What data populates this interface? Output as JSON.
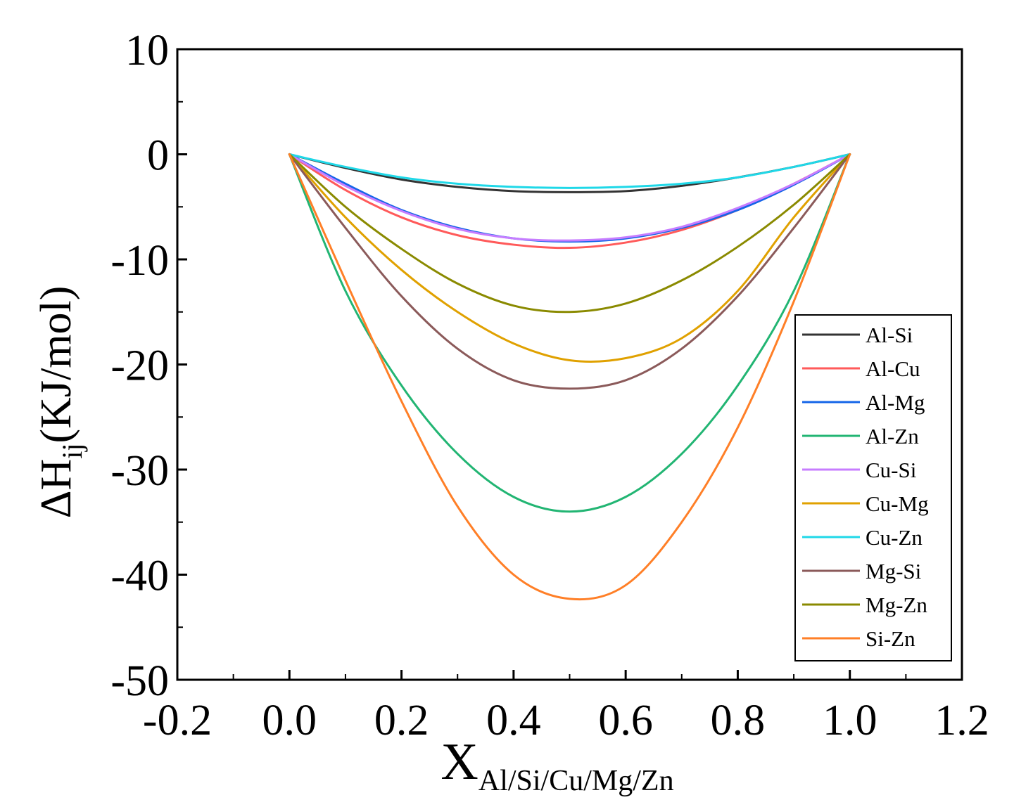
{
  "chart_data": {
    "type": "line",
    "title": "",
    "xlabel": {
      "main": "X",
      "subscript": "Al/Si/Cu/Mg/Zn"
    },
    "ylabel": {
      "prefix": "ΔH",
      "subscript": "ij",
      "suffix": "(KJ/mol)"
    },
    "xlim": [
      -0.2,
      1.2
    ],
    "ylim": [
      -50,
      10
    ],
    "xticks": [
      -0.2,
      0.0,
      0.2,
      0.4,
      0.6,
      0.8,
      1.0,
      1.2
    ],
    "xtick_labels": [
      "-0.2",
      "0.0",
      "0.2",
      "0.4",
      "0.6",
      "0.8",
      "1.0",
      "1.2"
    ],
    "yticks": [
      10,
      0,
      -10,
      -20,
      -30,
      -40,
      -50
    ],
    "ytick_labels": [
      "10",
      "0",
      "-10",
      "-20",
      "-30",
      "-40",
      "-50"
    ],
    "grid": false,
    "legend_position": "bottom-right",
    "x": [
      0.0,
      0.1,
      0.2,
      0.3,
      0.4,
      0.5,
      0.6,
      0.7,
      0.8,
      0.9,
      1.0
    ],
    "series": [
      {
        "name": "Al-Si",
        "color": "#333333",
        "values": [
          0,
          -1.3,
          -2.4,
          -3.1,
          -3.5,
          -3.6,
          -3.5,
          -3.0,
          -2.2,
          -1.2,
          0
        ]
      },
      {
        "name": "Al-Cu",
        "color": "#ff5a5a",
        "values": [
          0,
          -3.4,
          -6.0,
          -7.7,
          -8.6,
          -8.9,
          -8.4,
          -7.2,
          -5.3,
          -2.8,
          0
        ]
      },
      {
        "name": "Al-Mg",
        "color": "#1565e8",
        "values": [
          0,
          -2.8,
          -5.3,
          -7.0,
          -8.0,
          -8.3,
          -8.0,
          -7.0,
          -5.3,
          -2.9,
          0
        ]
      },
      {
        "name": "Al-Zn",
        "color": "#22b573",
        "values": [
          0,
          -13.0,
          -22.0,
          -28.5,
          -32.6,
          -34.0,
          -32.6,
          -28.5,
          -22.0,
          -13.0,
          0
        ]
      },
      {
        "name": "Cu-Si",
        "color": "#c77dff",
        "values": [
          0,
          -3.0,
          -5.4,
          -7.1,
          -8.0,
          -8.2,
          -7.9,
          -6.9,
          -5.1,
          -2.8,
          0
        ]
      },
      {
        "name": "Cu-Mg",
        "color": "#e0a100",
        "values": [
          0,
          -6.0,
          -11.0,
          -15.0,
          -18.0,
          -19.6,
          -19.4,
          -17.5,
          -13.0,
          -6.0,
          0
        ]
      },
      {
        "name": "Cu-Zn",
        "color": "#1fd8e8",
        "values": [
          0,
          -1.2,
          -2.2,
          -2.8,
          -3.1,
          -3.2,
          -3.1,
          -2.8,
          -2.2,
          -1.2,
          0
        ]
      },
      {
        "name": "Mg-Si",
        "color": "#8b5a5a",
        "values": [
          0,
          -7.0,
          -13.5,
          -18.5,
          -21.5,
          -22.3,
          -21.5,
          -18.5,
          -13.5,
          -7.0,
          0
        ]
      },
      {
        "name": "Mg-Zn",
        "color": "#8a8a00",
        "values": [
          0,
          -5.0,
          -9.0,
          -12.3,
          -14.4,
          -15.0,
          -14.2,
          -12.0,
          -8.8,
          -4.8,
          0
        ]
      },
      {
        "name": "Si-Zn",
        "color": "#ff7f27",
        "values": [
          0,
          -12.0,
          -23.5,
          -33.5,
          -40.0,
          -42.3,
          -41.0,
          -35.0,
          -26.0,
          -14.0,
          0
        ]
      }
    ]
  }
}
